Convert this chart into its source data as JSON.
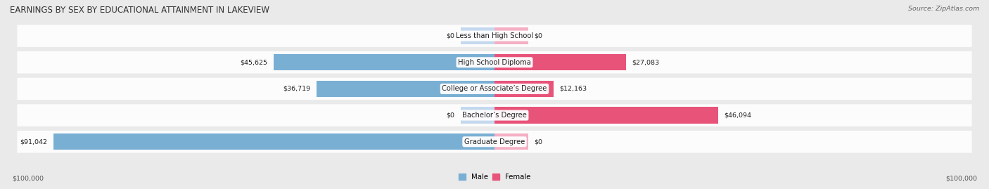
{
  "title": "EARNINGS BY SEX BY EDUCATIONAL ATTAINMENT IN LAKEVIEW",
  "source": "Source: ZipAtlas.com",
  "categories": [
    "Less than High School",
    "High School Diploma",
    "College or Associate’s Degree",
    "Bachelor’s Degree",
    "Graduate Degree"
  ],
  "male_values": [
    0,
    45625,
    36719,
    0,
    91042
  ],
  "female_values": [
    0,
    27083,
    12163,
    46094,
    0
  ],
  "male_labels": [
    "$0",
    "$45,625",
    "$36,719",
    "$0",
    "$91,042"
  ],
  "female_labels": [
    "$0",
    "$27,083",
    "$12,163",
    "$46,094",
    "$0"
  ],
  "max_value": 100000,
  "x_min_label": "$100,000",
  "x_max_label": "$100,000",
  "male_color_full": "#7aafd4",
  "male_color_light": "#c5d9ee",
  "female_color_full": "#e8537a",
  "female_color_light": "#f4afc4",
  "bg_color": "#eaeaea",
  "row_bg_even": "#f5f5f5",
  "row_bg_odd": "#ebebeb",
  "title_fontsize": 8.5,
  "label_fontsize": 6.8,
  "category_fontsize": 7.2,
  "source_fontsize": 6.8,
  "zero_stub": 7000
}
